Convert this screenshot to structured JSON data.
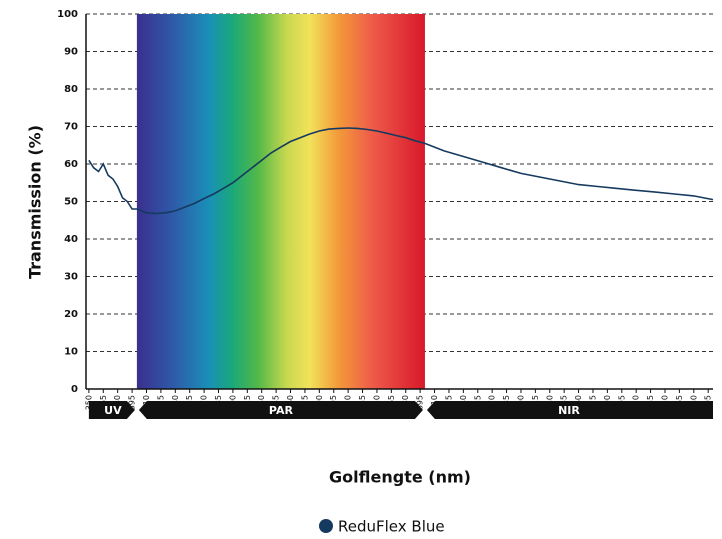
{
  "chart_data": {
    "type": "line",
    "x_label": "Golflengte (nm)",
    "y_label": "Transmission (%)",
    "xlim": [
      347,
      1000
    ],
    "ylim": [
      0,
      100
    ],
    "xticks": [
      350,
      365,
      380,
      395,
      410,
      425,
      440,
      455,
      470,
      485,
      500,
      515,
      530,
      545,
      560,
      575,
      590,
      605,
      620,
      635,
      650,
      665,
      680,
      695,
      710,
      725,
      740,
      755,
      770,
      785,
      800,
      815,
      830,
      845,
      860,
      875,
      890,
      905,
      920,
      935,
      950,
      965,
      980,
      995
    ],
    "yticks": [
      0,
      10,
      20,
      30,
      40,
      50,
      60,
      70,
      80,
      90,
      100
    ],
    "grid": true,
    "bands": [
      {
        "label": "UV",
        "range": [
          350,
          400
        ]
      },
      {
        "label": "PAR",
        "range": [
          400,
          700
        ]
      },
      {
        "label": "NIR",
        "range": [
          700,
          1000
        ]
      }
    ],
    "spectrum_band": 1,
    "series": [
      {
        "name": "ReduFlex Blue",
        "color": "#163a5f",
        "x": [
          350,
          355,
          360,
          365,
          370,
          375,
          380,
          385,
          390,
          395,
          400,
          410,
          420,
          430,
          440,
          450,
          460,
          470,
          480,
          490,
          500,
          510,
          520,
          530,
          540,
          550,
          560,
          570,
          580,
          590,
          600,
          610,
          620,
          630,
          640,
          650,
          660,
          670,
          680,
          690,
          700,
          720,
          740,
          760,
          780,
          800,
          820,
          840,
          860,
          880,
          900,
          920,
          940,
          960,
          980,
          1000
        ],
        "values": [
          61,
          59,
          58,
          60,
          57,
          56,
          54,
          51,
          50,
          48,
          48,
          47,
          46.8,
          47,
          47.5,
          48.5,
          49.5,
          50.8,
          52,
          53.5,
          55,
          57,
          59,
          61,
          63,
          64.5,
          66,
          67,
          68,
          68.8,
          69.3,
          69.5,
          69.6,
          69.5,
          69.2,
          68.8,
          68.2,
          67.6,
          67,
          66.2,
          65.5,
          63.5,
          62,
          60.5,
          59,
          57.5,
          56.5,
          55.5,
          54.5,
          54,
          53.5,
          53,
          52.5,
          52,
          51.5,
          50.5
        ]
      }
    ]
  }
}
